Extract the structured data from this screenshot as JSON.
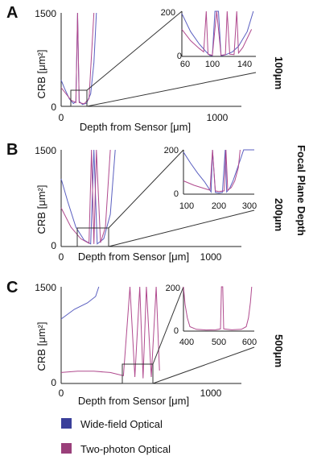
{
  "panels": [
    {
      "letter": "A",
      "side_label": "100μm"
    },
    {
      "letter": "B",
      "side_label": "200μm"
    },
    {
      "letter": "C",
      "side_label": "500μm"
    }
  ],
  "shared_side_label": "Focal Plane Depth",
  "legend": [
    {
      "label": "Wide-field Optical",
      "color": "#3a3f9a"
    },
    {
      "label": "Two-photon Optical",
      "color": "#9a3f7a"
    }
  ],
  "colors": {
    "wide_field": "#5a5fc0",
    "two_photon": "#b04a8e"
  },
  "chart_data": [
    {
      "type": "line",
      "panel": "A",
      "xlabel": "Depth from Sensor [μm]",
      "ylabel": "CRB [μm²]",
      "xlim": [
        0,
        1100
      ],
      "ylim": [
        0,
        1500
      ],
      "xticks": [
        "0",
        "1000"
      ],
      "yticks": [
        "0",
        "1500"
      ],
      "series": [
        {
          "name": "Wide-field Optical",
          "x": [
            0,
            20,
            50,
            75,
            90,
            100,
            110,
            130,
            155,
            180,
            200,
            215
          ],
          "y": [
            420,
            290,
            120,
            45,
            80,
            1500,
            80,
            30,
            50,
            200,
            700,
            1500
          ]
        },
        {
          "name": "Two-photon Optical",
          "x": [
            0,
            30,
            60,
            90,
            100,
            110,
            140,
            170,
            200
          ],
          "y": [
            300,
            200,
            100,
            60,
            1500,
            60,
            40,
            120,
            1500
          ]
        }
      ],
      "inset": {
        "xlim": [
          60,
          145
        ],
        "ylim": [
          0,
          200
        ],
        "xticks": [
          "60",
          "100",
          "140"
        ],
        "yticks": [
          "0",
          "200"
        ],
        "series": [
          {
            "name": "Wide-field Optical",
            "x": [
              60,
              70,
              80,
              88,
              92,
              95,
              98,
              102,
              105,
              108,
              112,
              118,
              125,
              135,
              142
            ],
            "y": [
              190,
              110,
              55,
              20,
              5,
              3,
              200,
              200,
              3,
              5,
              10,
              20,
              45,
              110,
              200
            ]
          },
          {
            "name": "Two-photon Optical",
            "x": [
              60,
              70,
              80,
              85,
              88,
              90,
              95,
              100,
              105,
              110,
              112,
              115,
              120,
              123,
              125,
              130,
              140
            ],
            "y": [
              120,
              70,
              35,
              20,
              200,
              10,
              5,
              200,
              5,
              8,
              200,
              10,
              8,
              200,
              15,
              40,
              120
            ]
          }
        ]
      }
    },
    {
      "type": "line",
      "panel": "B",
      "xlabel": "Depth from Sensor [μm]",
      "ylabel": "CRB [μm²]",
      "xlim": [
        0,
        1100
      ],
      "ylim": [
        0,
        1500
      ],
      "xticks": [
        "0",
        "1000"
      ],
      "yticks": [
        "0",
        "1500"
      ],
      "series": [
        {
          "name": "Wide-field Optical",
          "x": [
            0,
            40,
            90,
            140,
            180,
            200,
            220,
            260,
            300,
            330
          ],
          "y": [
            1050,
            700,
            300,
            100,
            40,
            1500,
            40,
            120,
            500,
            1500
          ]
        },
        {
          "name": "Two-photon Optical",
          "x": [
            0,
            60,
            120,
            170,
            185,
            200,
            215,
            240,
            270,
            300
          ],
          "y": [
            600,
            300,
            120,
            50,
            1500,
            40,
            1500,
            60,
            300,
            1500
          ]
        }
      ],
      "inset": {
        "xlim": [
          100,
          300
        ],
        "ylim": [
          0,
          200
        ],
        "xticks": [
          "100",
          "200",
          "300"
        ],
        "yticks": [
          "0",
          "200"
        ],
        "series": [
          {
            "name": "Wide-field Optical",
            "x": [
              100,
              120,
              140,
              160,
              172,
              178,
              182,
              190,
              200,
              210,
              218,
              222,
              230,
              240,
              255,
              270,
              285,
              300
            ],
            "y": [
              190,
              140,
              95,
              55,
              25,
              10,
              200,
              8,
              5,
              8,
              200,
              10,
              25,
              60,
              130,
              200,
              200,
              200
            ]
          },
          {
            "name": "Two-photon Optical",
            "x": [
              100,
              130,
              160,
              175,
              182,
              190,
              200,
              215,
              220,
              225,
              235,
              245,
              255,
              260
            ],
            "y": [
              60,
              40,
              25,
              18,
              200,
              15,
              12,
              15,
              200,
              18,
              30,
              60,
              120,
              200
            ]
          }
        ]
      }
    },
    {
      "type": "line",
      "panel": "C",
      "xlabel": "Depth from Sensor [μm]",
      "ylabel": "CRB [μm²]",
      "xlim": [
        0,
        1100
      ],
      "ylim": [
        0,
        1500
      ],
      "xticks": [
        "0",
        "1000"
      ],
      "yticks": [
        "0",
        "1500"
      ],
      "series": [
        {
          "name": "Wide-field Optical",
          "x": [
            0,
            80,
            160,
            210,
            230
          ],
          "y": [
            1000,
            1150,
            1250,
            1350,
            1500
          ]
        },
        {
          "name": "Two-photon Optical",
          "x": [
            0,
            100,
            200,
            300,
            380,
            420,
            450,
            480,
            500,
            520,
            550,
            580,
            600
          ],
          "y": [
            170,
            190,
            190,
            170,
            120,
            1500,
            100,
            1500,
            80,
            1500,
            100,
            1500,
            200
          ]
        }
      ],
      "inset": {
        "xlim": [
          380,
          600
        ],
        "ylim": [
          0,
          200
        ],
        "xticks": [
          "400",
          "500",
          "600"
        ],
        "yticks": [
          "0",
          "200"
        ],
        "series": [
          {
            "name": "Two-photon Optical",
            "x": [
              380,
              385,
              392,
              400,
              420,
              450,
              480,
              495,
              498,
              502,
              505,
              530,
              560,
              575,
              582,
              588,
              592
            ],
            "y": [
              200,
              120,
              60,
              20,
              8,
              5,
              6,
              10,
              200,
              200,
              10,
              6,
              8,
              20,
              60,
              130,
              200
            ]
          }
        ]
      }
    }
  ]
}
